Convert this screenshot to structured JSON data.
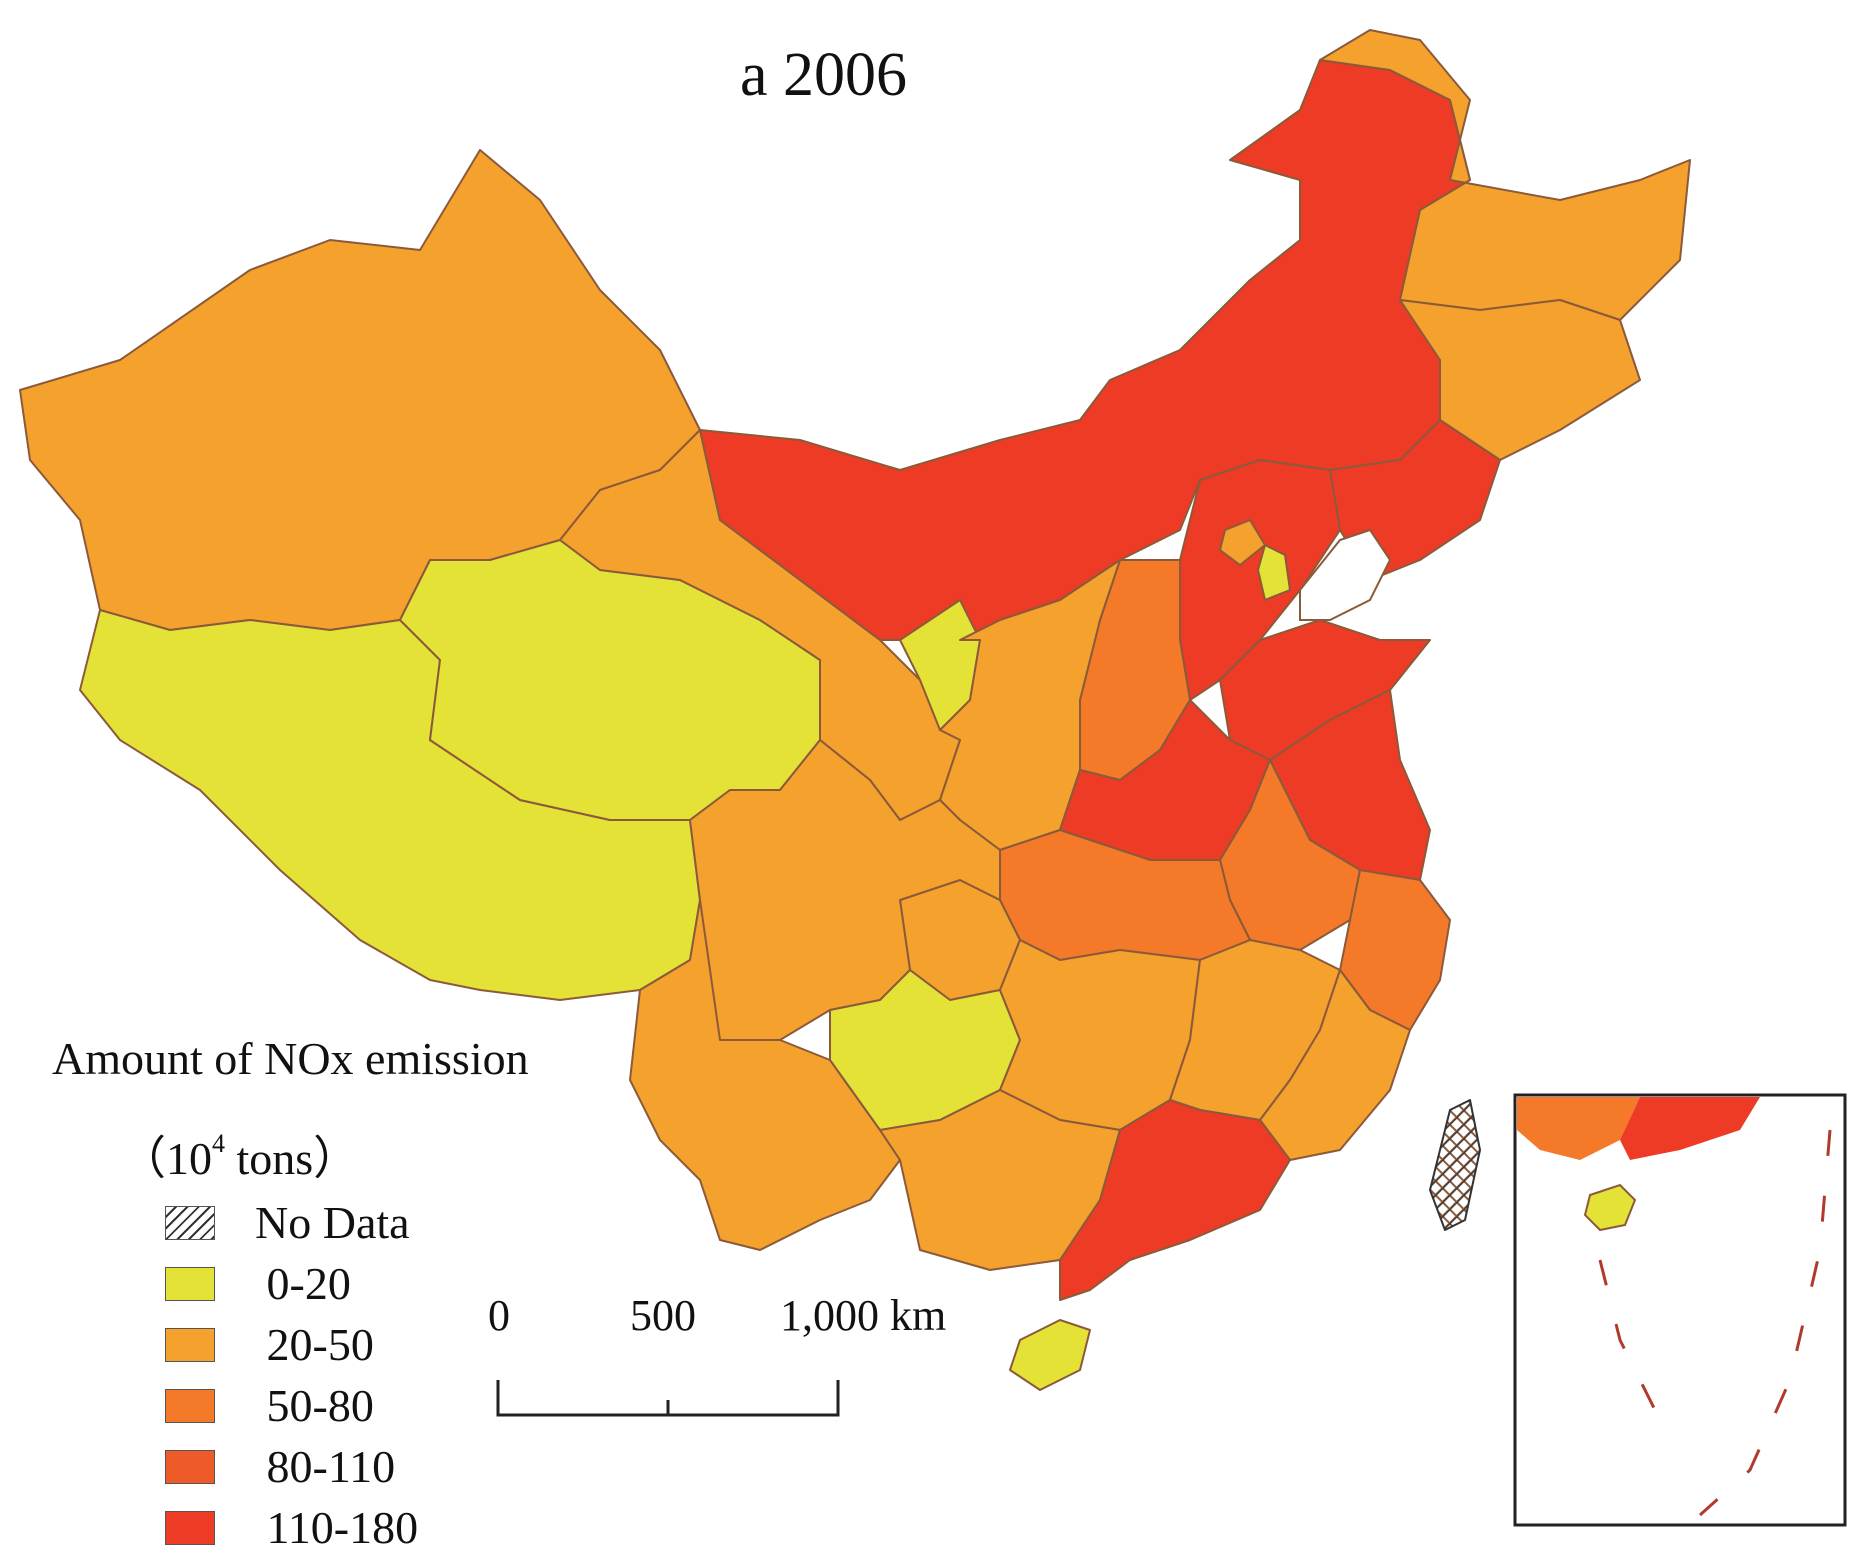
{
  "title": "a 2006",
  "legend": {
    "title": "Amount of NOx emission",
    "unit_prefix": "（10",
    "unit_exp": "4",
    "unit_suffix": " tons）",
    "items": [
      {
        "label": "No Data",
        "color": "hatch"
      },
      {
        "label": " 0-20",
        "color": "#e4e236"
      },
      {
        "label": " 20-50",
        "color": "#f5a12d"
      },
      {
        "label": " 50-80",
        "color": "#f47a2a"
      },
      {
        "label": " 80-110",
        "color": "#ee5a28"
      },
      {
        "label": " 110-180",
        "color": "#ee3b25"
      }
    ]
  },
  "scale_bar": {
    "labels": [
      "0",
      "500",
      "1,000 km"
    ]
  },
  "colors": {
    "class_0_20": "#e4e236",
    "class_20_50": "#f5a12d",
    "class_50_80": "#f47a2a",
    "class_80_110": "#ee5a28",
    "class_110_180": "#ee3b25",
    "boundary": "#8a5a3a",
    "sea_line": "#b03a2e"
  }
}
